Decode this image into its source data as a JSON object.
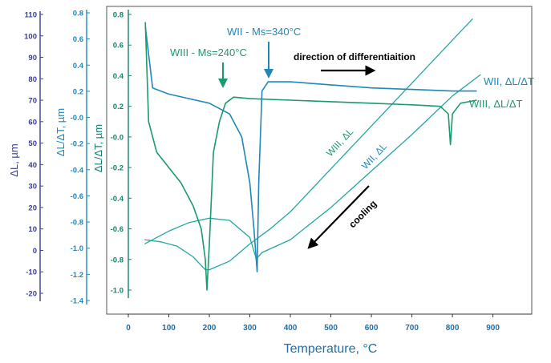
{
  "chart_data": {
    "type": "line",
    "xlabel": "Temperature, °C",
    "xlim": [
      0,
      980
    ],
    "x_ticks": [
      "0",
      "100",
      "200",
      "300",
      "400",
      "500",
      "600",
      "700",
      "800",
      "900"
    ],
    "axes": [
      {
        "id": "ax1",
        "label": "ΔL, µm",
        "ylim": [
          -25,
          115
        ],
        "ticks": [
          "110",
          "100",
          "90",
          "80",
          "70",
          "60",
          "50",
          "40",
          "30",
          "20",
          "10",
          "0",
          "-10",
          "-20"
        ],
        "color": "#3a3f8f"
      },
      {
        "id": "ax2",
        "label": "ΔL/ΔT, µm",
        "ylim": [
          -1.45,
          0.85
        ],
        "ticks": [
          "0.8",
          "0.6",
          "0.4",
          "0.2",
          "-0.0",
          "-0.2",
          "-0.4",
          "-0.6",
          "-0.8",
          "-1.0",
          "-1.2",
          "-1.4"
        ],
        "color": "#1f88b8"
      },
      {
        "id": "ax3",
        "label": "ΔL/ΔT, µm",
        "ylim": [
          -1.08,
          0.85
        ],
        "ticks": [
          "0.8",
          "0.6",
          "0.4",
          "0.2",
          "-0.0",
          "-0.2",
          "-0.4",
          "-0.6",
          "-0.8",
          "-1.0"
        ],
        "color": "#17806f"
      }
    ],
    "series": [
      {
        "name": "WII, ΔL",
        "axis": "ax1",
        "color": "#23a8a0",
        "x": [
          40,
          100,
          150,
          200,
          250,
          300,
          316,
          330,
          400,
          500,
          600,
          700,
          800,
          870
        ],
        "y": [
          3,
          9,
          13,
          15,
          14,
          6,
          -4,
          -1,
          5,
          20,
          37,
          54,
          72,
          82
        ]
      },
      {
        "name": "WIII, ΔL",
        "axis": "ax1",
        "color": "#23a8a0",
        "x": [
          40,
          80,
          120,
          160,
          190,
          200,
          250,
          300,
          350,
          400,
          450,
          500,
          600,
          700,
          800,
          850
        ],
        "y": [
          5,
          4,
          2,
          -3,
          -9,
          -9,
          -5,
          3,
          10,
          18,
          28,
          38,
          58,
          78,
          98,
          108
        ]
      },
      {
        "name": "WII, ΔL/ΔT",
        "axis": "ax3",
        "color": "#1f88b8",
        "x": [
          42,
          60,
          80,
          100,
          150,
          200,
          250,
          280,
          300,
          310,
          318,
          322,
          330,
          345,
          400,
          500,
          600,
          700,
          800,
          860
        ],
        "y": [
          0.72,
          0.32,
          0.3,
          0.28,
          0.25,
          0.22,
          0.15,
          0.0,
          -0.3,
          -0.6,
          -0.88,
          -0.3,
          0.3,
          0.36,
          0.36,
          0.34,
          0.32,
          0.31,
          0.3,
          0.3
        ]
      },
      {
        "name": "WIII, ΔL/ΔT",
        "axis": "ax3",
        "color": "#1a9a6e",
        "x": [
          42,
          50,
          70,
          100,
          130,
          160,
          180,
          190,
          194,
          200,
          210,
          225,
          240,
          260,
          300,
          400,
          500,
          600,
          700,
          770,
          790,
          795,
          800,
          820,
          860
        ],
        "y": [
          0.75,
          0.1,
          -0.1,
          -0.2,
          -0.3,
          -0.45,
          -0.6,
          -0.8,
          -1.0,
          -0.7,
          -0.1,
          0.1,
          0.22,
          0.26,
          0.25,
          0.24,
          0.23,
          0.22,
          0.21,
          0.2,
          0.15,
          -0.05,
          0.15,
          0.22,
          0.24
        ]
      }
    ],
    "annotations": [
      {
        "id": "wiii-ms",
        "text": "WIII - Ms=240°C",
        "color": "#1a9a6e"
      },
      {
        "id": "wii-ms",
        "text": "WII - Ms=340°C",
        "color": "#1f88b8"
      },
      {
        "id": "direction",
        "text": "direction of differentiaition",
        "color": "#000000"
      },
      {
        "id": "cooling",
        "text": "cooling",
        "color": "#000000"
      },
      {
        "id": "lbl-wii-dldt",
        "text": "WII, ΔL/ΔT",
        "color": "#1f88b8"
      },
      {
        "id": "lbl-wiii-dldt",
        "text": "WIII, ΔL/ΔT",
        "color": "#1a9a6e"
      },
      {
        "id": "lbl-wiii-dl",
        "text": "WIII, ΔL",
        "color": "#1a9a6e"
      },
      {
        "id": "lbl-wii-dl",
        "text": "WII, ΔL",
        "color": "#1f88b8"
      }
    ],
    "grid": false
  }
}
